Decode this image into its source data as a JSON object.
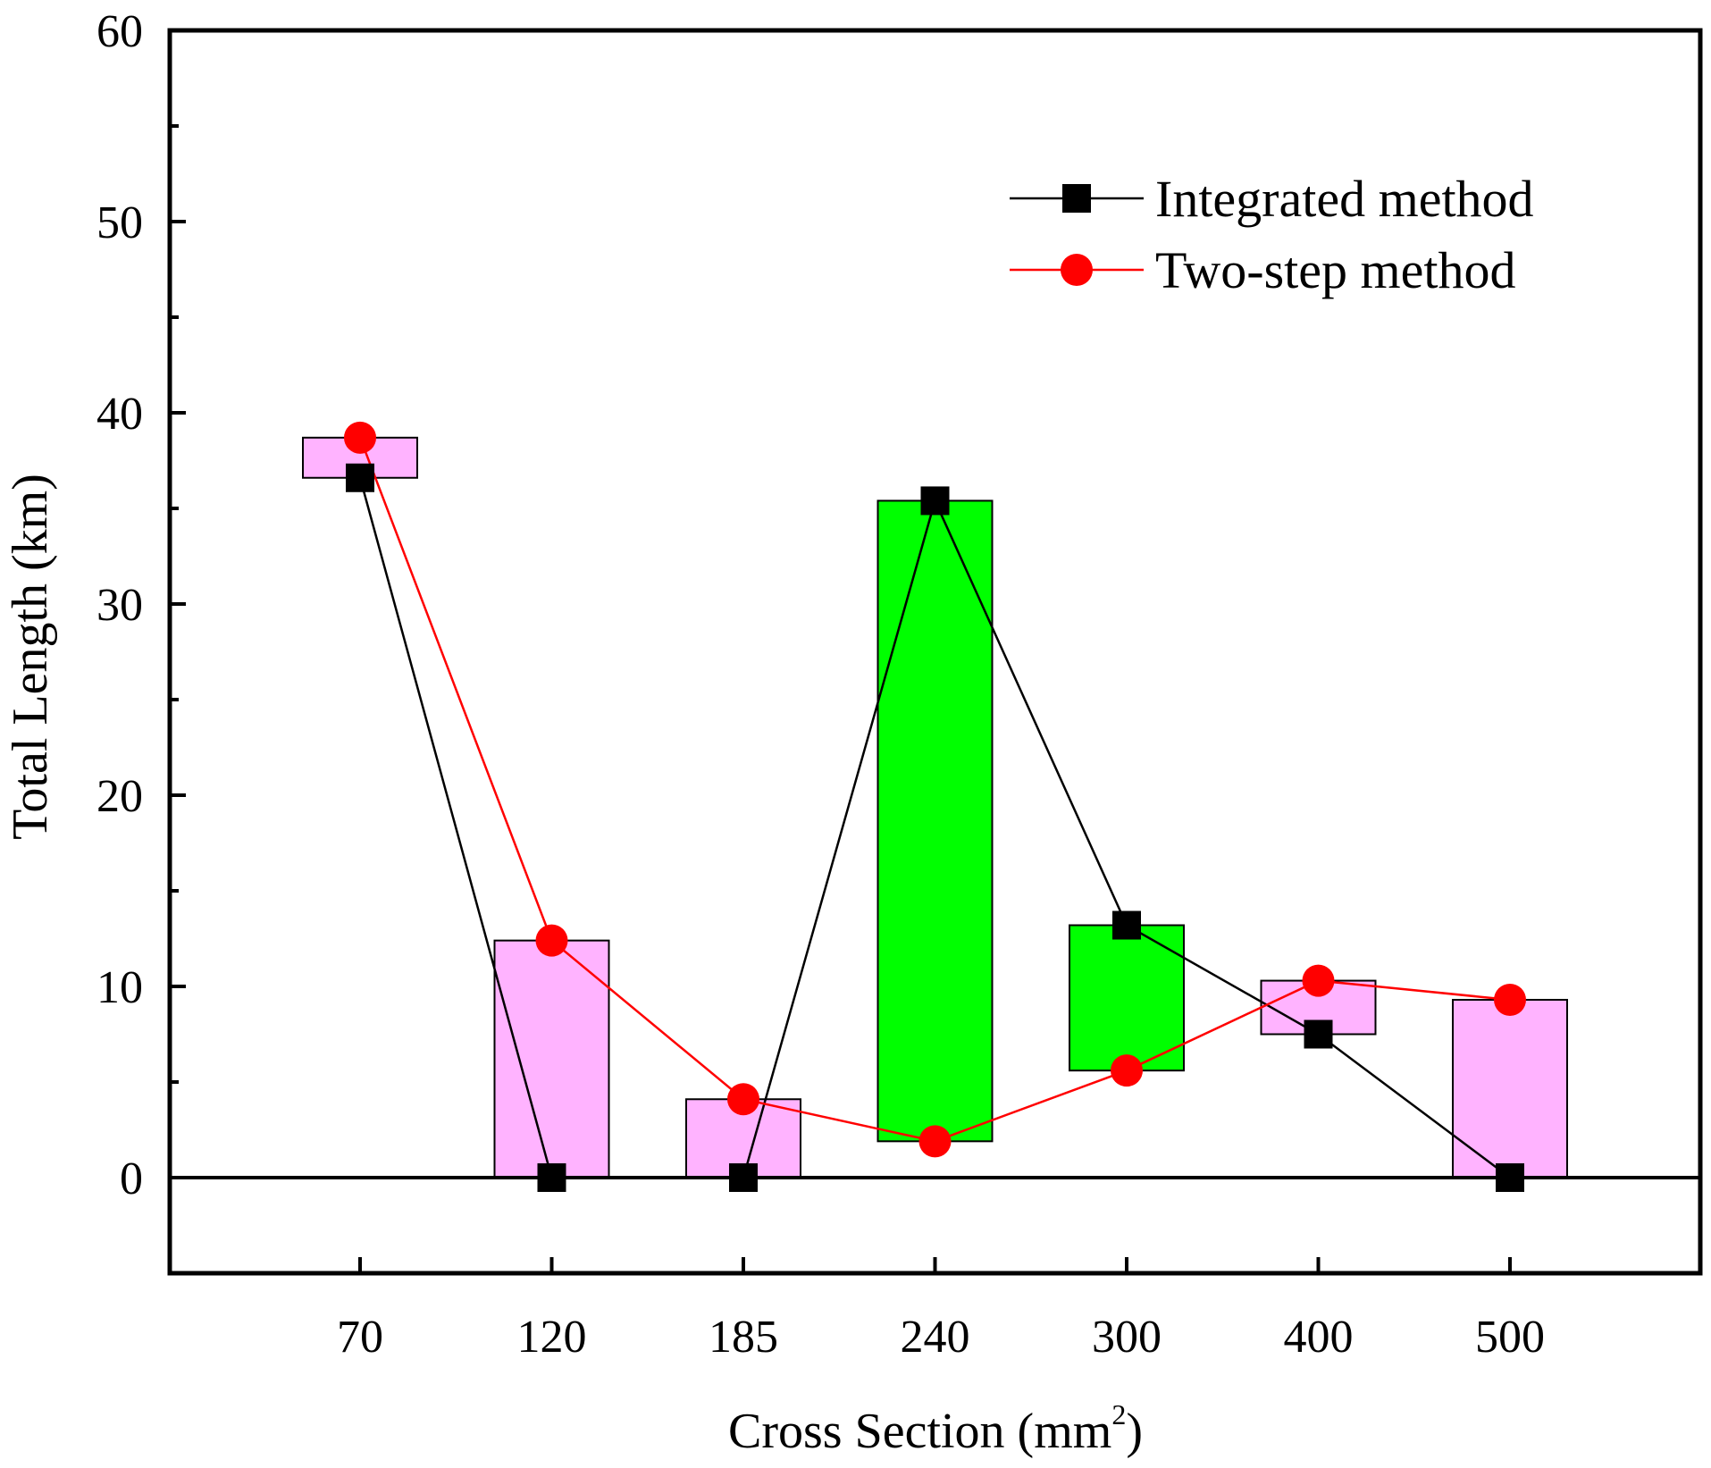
{
  "chart_data": {
    "type": "line",
    "categories": [
      "70",
      "120",
      "185",
      "240",
      "300",
      "400",
      "500"
    ],
    "xlabel": "Cross Section (mm",
    "xlabel_superscript": "2",
    "xlabel_suffix": ")",
    "ylabel": "Total Length (km)",
    "ylim": [
      -5,
      60
    ],
    "yticks": [
      0,
      10,
      20,
      30,
      40,
      50,
      60
    ],
    "yticks_minor": [
      5,
      15,
      25,
      35,
      45,
      55
    ],
    "zero_line": true,
    "grid": false,
    "legend_position": "top-right",
    "series": [
      {
        "name": "Integrated method",
        "color": "#000000",
        "marker": "square",
        "values": [
          36.6,
          0,
          0,
          35.4,
          13.2,
          7.5,
          0
        ]
      },
      {
        "name": "Two-step method",
        "color": "#ff0000",
        "marker": "circle",
        "values": [
          38.7,
          12.4,
          4.1,
          1.9,
          5.6,
          10.3,
          9.3
        ]
      }
    ],
    "difference_bars": {
      "increase_color": "#00ff00",
      "decrease_color": "#ffb3ff",
      "outline_color": "#000000"
    }
  }
}
